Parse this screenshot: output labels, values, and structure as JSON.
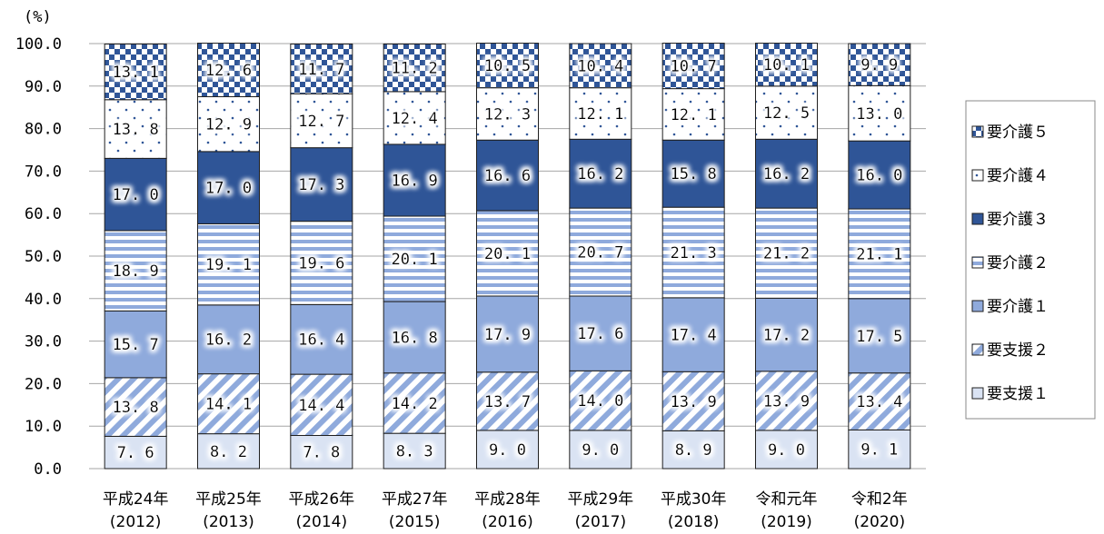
{
  "chart_data": {
    "type": "bar",
    "stacked": true,
    "ylabel": "(%)",
    "ylim": [
      0,
      100
    ],
    "yticks": [
      "0.0",
      "10.0",
      "20.0",
      "30.0",
      "40.0",
      "50.0",
      "60.0",
      "70.0",
      "80.0",
      "90.0",
      "100.0"
    ],
    "categories": [
      [
        "平成24年",
        "(2012)"
      ],
      [
        "平成25年",
        "(2013)"
      ],
      [
        "平成26年",
        "(2014)"
      ],
      [
        "平成27年",
        "(2015)"
      ],
      [
        "平成28年",
        "(2016)"
      ],
      [
        "平成29年",
        "(2017)"
      ],
      [
        "平成30年",
        "(2018)"
      ],
      [
        "令和元年",
        "(2019)"
      ],
      [
        "令和2年",
        "(2020)"
      ]
    ],
    "series": [
      {
        "name": "要支援１",
        "values": [
          7.6,
          8.2,
          7.8,
          8.3,
          9.0,
          9.0,
          8.9,
          9.0,
          9.1
        ]
      },
      {
        "name": "要支援２",
        "values": [
          13.8,
          14.1,
          14.4,
          14.2,
          13.7,
          14.0,
          13.9,
          13.9,
          13.4
        ]
      },
      {
        "name": "要介護１",
        "values": [
          15.7,
          16.2,
          16.4,
          16.8,
          17.9,
          17.6,
          17.4,
          17.2,
          17.5
        ]
      },
      {
        "name": "要介護２",
        "values": [
          18.9,
          19.1,
          19.6,
          20.1,
          20.1,
          20.7,
          21.3,
          21.2,
          21.1
        ]
      },
      {
        "name": "要介護３",
        "values": [
          17.0,
          17.0,
          17.3,
          16.9,
          16.6,
          16.2,
          15.8,
          16.2,
          16.0
        ]
      },
      {
        "name": "要介護４",
        "values": [
          13.8,
          12.9,
          12.7,
          12.4,
          12.3,
          12.1,
          12.1,
          12.5,
          13.0
        ]
      },
      {
        "name": "要介護５",
        "values": [
          13.1,
          12.6,
          11.7,
          11.2,
          10.5,
          10.4,
          10.7,
          10.1,
          9.9
        ]
      }
    ],
    "legend_position": "right",
    "legend_order": [
      "要介護５",
      "要介護４",
      "要介護３",
      "要介護２",
      "要介護１",
      "要支援２",
      "要支援１"
    ],
    "grid": true,
    "colors": {
      "dark_blue": "#2f5597",
      "light_blue": "#8faadc",
      "pale_blue": "#dae3f3"
    }
  }
}
